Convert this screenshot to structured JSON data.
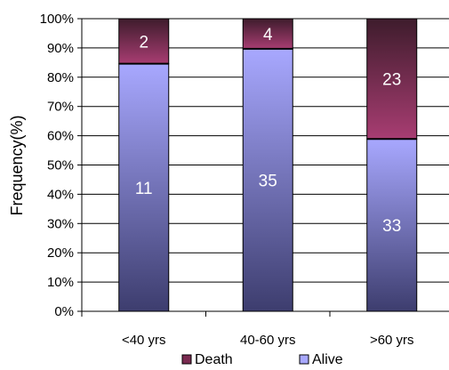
{
  "chart_data": {
    "type": "bar",
    "stacked": true,
    "percent_scale": true,
    "title": "",
    "xlabel": "",
    "ylabel": "Frequency(%)",
    "ylim": [
      0,
      100
    ],
    "y_ticks": [
      "0%",
      "10%",
      "20%",
      "30%",
      "40%",
      "50%",
      "60%",
      "70%",
      "80%",
      "90%",
      "100%"
    ],
    "categories": [
      "<40 yrs",
      "40-60 yrs",
      ">60 yrs"
    ],
    "series": [
      {
        "name": "Alive",
        "values": [
          11,
          35,
          33
        ],
        "percent": [
          84.6,
          89.7,
          58.9
        ],
        "color_top": "#a8a8ff",
        "color_bottom": "#3d3d6e"
      },
      {
        "name": "Death",
        "values": [
          2,
          4,
          23
        ],
        "percent": [
          15.4,
          10.3,
          41.1
        ],
        "color_top": "#3e1c2c",
        "color_bottom": "#a83d72"
      }
    ],
    "grid": true,
    "legend_position": "bottom"
  }
}
